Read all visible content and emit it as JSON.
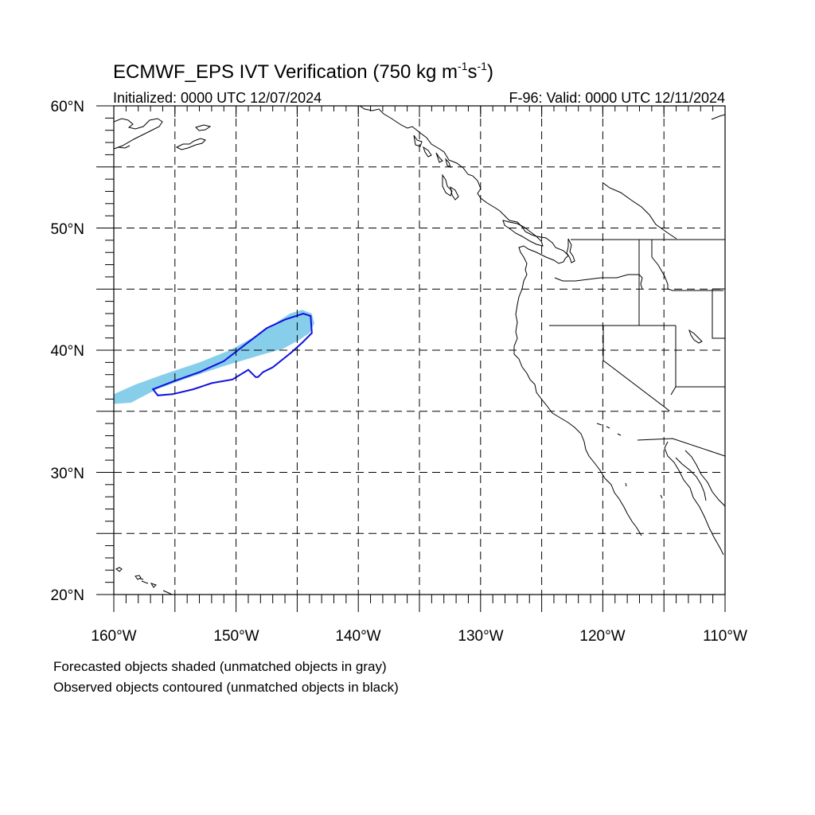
{
  "title": {
    "main": "ECMWF_EPS IVT Verification (750 kg m",
    "sup1": "-1",
    "mid": "s",
    "sup2": "-1",
    "end": ")"
  },
  "subtitle_left": "Initialized: 0000 UTC 12/07/2024",
  "subtitle_right": "F-96: Valid: 0000 UTC 12/11/2024",
  "lat_labels": [
    "60°N",
    "50°N",
    "40°N",
    "30°N",
    "20°N"
  ],
  "lon_labels": [
    "160°W",
    "150°W",
    "140°W",
    "130°W",
    "120°W",
    "110°W"
  ],
  "lat_values": [
    60,
    50,
    40,
    30,
    20
  ],
  "lon_values": [
    -160,
    -150,
    -140,
    -130,
    -120,
    -110
  ],
  "map_extent": {
    "lon_min": -160,
    "lon_max": -110,
    "lat_min": 20,
    "lat_max": 60
  },
  "grid_spacing_deg": 5,
  "footnotes": [
    "Forecasted objects shaded (unmatched objects in gray)",
    "Observed objects contoured (unmatched objects in black)"
  ],
  "colors": {
    "forecast_fill": "#87ceeb",
    "observed_contour": "#1010e0",
    "coastline": "#000000",
    "grid": "#000000"
  },
  "forecast_object_outline_lonlat": [
    [
      -160.0,
      36.4
    ],
    [
      -158.2,
      37.2
    ],
    [
      -156.0,
      38.0
    ],
    [
      -153.0,
      39.0
    ],
    [
      -150.5,
      40.0
    ],
    [
      -148.5,
      41.1
    ],
    [
      -146.8,
      42.2
    ],
    [
      -145.6,
      43.0
    ],
    [
      -144.6,
      43.3
    ],
    [
      -143.8,
      43.0
    ],
    [
      -143.6,
      42.2
    ],
    [
      -144.0,
      41.4
    ],
    [
      -144.9,
      40.8
    ],
    [
      -146.2,
      40.1
    ],
    [
      -148.0,
      39.6
    ],
    [
      -151.0,
      38.7
    ],
    [
      -154.0,
      37.7
    ],
    [
      -156.5,
      36.8
    ],
    [
      -158.6,
      35.7
    ],
    [
      -160.0,
      35.6
    ]
  ],
  "observed_object_outline_lonlat": [
    [
      -156.8,
      36.8
    ],
    [
      -155.0,
      37.5
    ],
    [
      -153.0,
      38.2
    ],
    [
      -151.0,
      39.1
    ],
    [
      -149.2,
      40.5
    ],
    [
      -147.5,
      41.8
    ],
    [
      -146.0,
      42.5
    ],
    [
      -144.5,
      43.0
    ],
    [
      -143.9,
      42.8
    ],
    [
      -143.8,
      41.4
    ],
    [
      -144.6,
      40.6
    ],
    [
      -145.5,
      39.8
    ],
    [
      -147.0,
      38.6
    ],
    [
      -147.8,
      38.2
    ],
    [
      -148.2,
      37.8
    ],
    [
      -148.4,
      37.8
    ],
    [
      -149.0,
      38.4
    ],
    [
      -150.3,
      37.6
    ],
    [
      -152.0,
      37.3
    ],
    [
      -153.5,
      36.8
    ],
    [
      -155.2,
      36.4
    ],
    [
      -156.4,
      36.3
    ]
  ]
}
